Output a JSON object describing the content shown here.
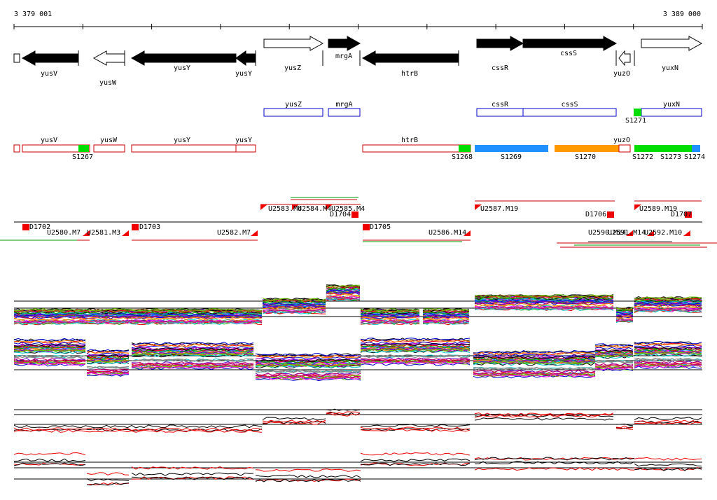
{
  "ruler": {
    "start": "3 379 001",
    "end": "3 389 000"
  },
  "genes": [
    "yusV",
    "yusW",
    "yusY",
    "yusY",
    "yusZ",
    "mrgA",
    "htrB",
    "cssR",
    "cssS",
    "yuzO",
    "yuxN"
  ],
  "features": [
    "yusZ",
    "mrgA",
    "cssR",
    "cssS",
    "yuxN",
    "S1271"
  ],
  "segments": [
    "yusV",
    "yusW",
    "yusY",
    "yusY",
    "S1267",
    "htrB",
    "S1268",
    "S1269",
    "S1270",
    "yuzO",
    "S1272",
    "S1273",
    "S1274"
  ],
  "transcripts": [
    "U2583.M4",
    "U2584.M4",
    "U2585.M4",
    "D1704",
    "U2587.M19",
    "D1706",
    "U2589.M19",
    "D1707",
    "D1702",
    "U2580.M7",
    "U2581.M3",
    "D1703",
    "U2582.M7",
    "D1705",
    "U2586.M14",
    "U2590.M14",
    "U2591.M14",
    "U2592.M10"
  ]
}
